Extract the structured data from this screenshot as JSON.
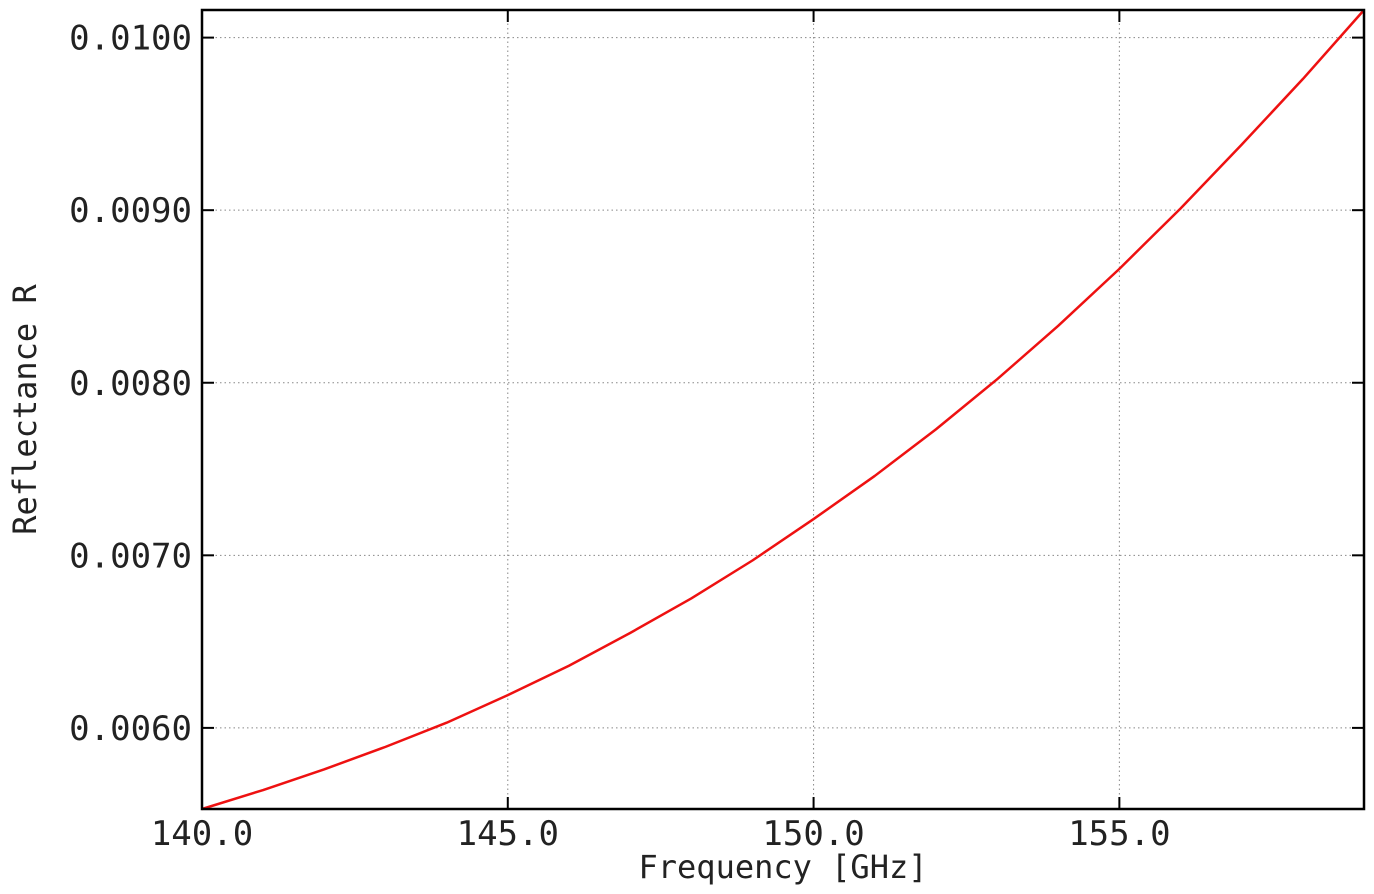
{
  "chart_data": {
    "type": "line",
    "title": "",
    "xlabel": "Frequency [GHz]",
    "ylabel": "Reflectance R",
    "xlim": [
      140.0,
      159.0
    ],
    "ylim": [
      0.00553,
      0.01016
    ],
    "x_ticks": [
      140.0,
      145.0,
      150.0,
      155.0
    ],
    "x_tick_labels": [
      "140.0",
      "145.0",
      "150.0",
      "155.0"
    ],
    "y_ticks": [
      0.006,
      0.007,
      0.008,
      0.009,
      0.01
    ],
    "y_tick_labels": [
      "0.0060",
      "0.0070",
      "0.0080",
      "0.0090",
      "0.0100"
    ],
    "grid": true,
    "series": [
      {
        "color": "#ee1111",
        "x": [
          140,
          141,
          142,
          143,
          144,
          145,
          146,
          147,
          148,
          149,
          150,
          151,
          152,
          153,
          154,
          155,
          156,
          157,
          158,
          159
        ],
        "y": [
          0.00553,
          0.00564,
          0.00576,
          0.00589,
          0.00603,
          0.00619,
          0.00636,
          0.00655,
          0.00675,
          0.00697,
          0.00721,
          0.00746,
          0.00773,
          0.00802,
          0.00833,
          0.00866,
          0.00901,
          0.00938,
          0.00976,
          0.01016
        ]
      }
    ]
  }
}
